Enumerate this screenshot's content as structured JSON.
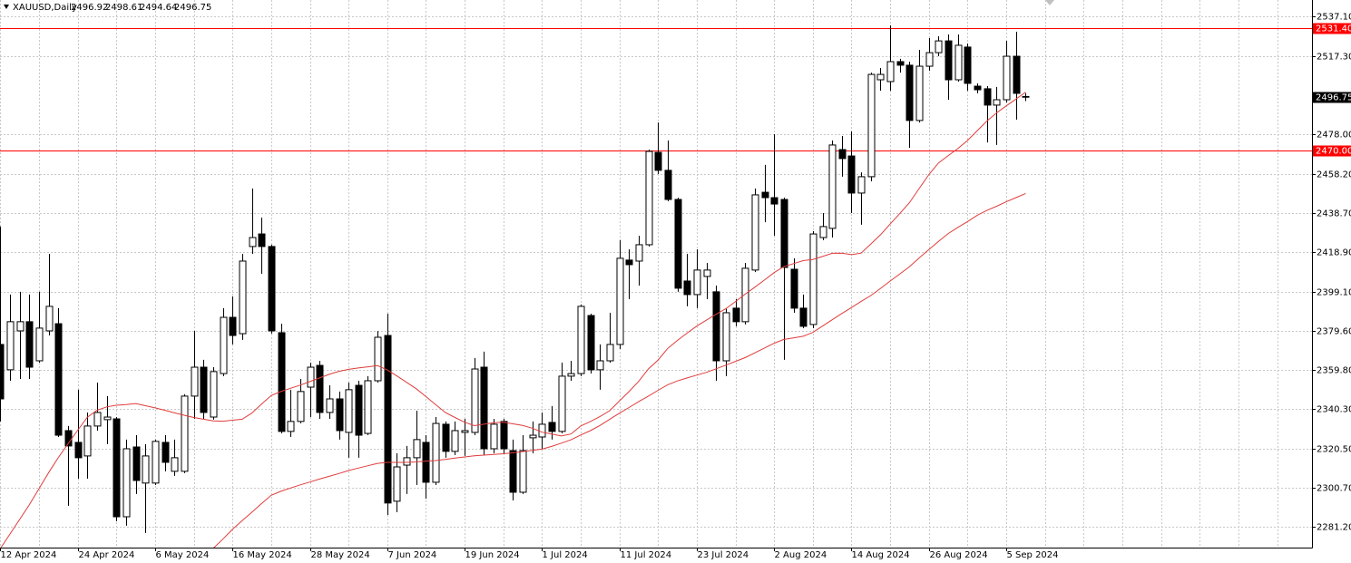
{
  "chart_data": {
    "type": "candlestick",
    "title": "XAUUSD,Daily",
    "categories": [
      "12 Apr 2024",
      null,
      null,
      null,
      null,
      null,
      null,
      null,
      "24 Apr 2024",
      null,
      null,
      null,
      null,
      null,
      null,
      null,
      "6 May 2024",
      null,
      null,
      null,
      null,
      null,
      null,
      null,
      "16 May 2024",
      null,
      null,
      null,
      null,
      null,
      null,
      null,
      "28 May 2024",
      null,
      null,
      null,
      null,
      null,
      null,
      null,
      "7 Jun 2024",
      null,
      null,
      null,
      null,
      null,
      null,
      null,
      "19 Jun 2024",
      null,
      null,
      null,
      null,
      null,
      null,
      null,
      "1 Jul 2024",
      null,
      null,
      null,
      null,
      null,
      null,
      null,
      "11 Jul 2024",
      null,
      null,
      null,
      null,
      null,
      null,
      null,
      "23 Jul 2024",
      null,
      null,
      null,
      null,
      null,
      null,
      null,
      "2 Aug 2024",
      null,
      null,
      null,
      null,
      null,
      null,
      null,
      "14 Aug 2024",
      null,
      null,
      null,
      null,
      null,
      null,
      null,
      "26 Aug 2024",
      null,
      null,
      null,
      null,
      null,
      null,
      null,
      "5 Sep 2024",
      null,
      null
    ],
    "open": [
      2372.6,
      2359.9,
      2379.4,
      2384.0,
      2364.4,
      2379.4,
      2383.0,
      2329.4,
      2323.5,
      2316.7,
      2331.7,
      2334.9,
      2335.3,
      2286.2,
      2321.2,
      2303.1,
      2303.1,
      2323.5,
      2309.0,
      2309.0,
      2346.7,
      2361.2,
      2336.2,
      2358.0,
      2386.2,
      2378.0,
      2421.7,
      2428.0,
      2421.7,
      2378.5,
      2329.0,
      2334.0,
      2351.2,
      2362.1,
      2338.5,
      2345.3,
      2328.5,
      2352.1,
      2328.0,
      2354.4,
      2377.1,
      2294.0,
      2312.1,
      2315.8,
      2323.5,
      2303.5,
      2332.6,
      2319.0,
      2328.5,
      2328.5,
      2361.2,
      2320.3,
      2334.0,
      2319.4,
      2298.5,
      2325.8,
      2326.2,
      2333.5,
      2329.0,
      2356.7,
      2358.0,
      2387.1,
      2359.9,
      2364.4,
      2372.6,
      2414.9,
      2414.4,
      2422.6,
      2468.9,
      2459.9,
      2445.3,
      2404.4,
      2397.6,
      2406.7,
      2399.0,
      2364.4,
      2390.8,
      2384.0,
      2409.9,
      2448.9,
      2446.2,
      2445.3,
      2410.3,
      2390.8,
      2382.6,
      2426.2,
      2430.8,
      2470.3,
      2467.1,
      2448.5,
      2456.7,
      2505.3,
      2504.4,
      2514.4,
      2512.6,
      2484.9,
      2512.1,
      2518.9,
      2524.8,
      2505.3,
      2521.7,
      2502.1,
      2500.8,
      2492.6,
      2495.3,
      2517.1,
      2496.92
    ],
    "high": [
      2431.7,
      2397.6,
      2399.0,
      2397.6,
      2399.0,
      2418.0,
      2390.8,
      2331.7,
      2349.9,
      2338.5,
      2353.5,
      2346.7,
      2336.2,
      2324.9,
      2327.1,
      2322.6,
      2324.9,
      2327.1,
      2324.9,
      2347.6,
      2379.4,
      2364.9,
      2361.2,
      2390.8,
      2396.7,
      2418.0,
      2450.8,
      2436.2,
      2422.6,
      2383.0,
      2349.9,
      2355.3,
      2363.5,
      2364.4,
      2352.1,
      2349.0,
      2353.5,
      2354.4,
      2356.7,
      2379.4,
      2388.0,
      2318.0,
      2321.7,
      2339.4,
      2327.1,
      2336.2,
      2334.0,
      2334.0,
      2335.3,
      2365.8,
      2369.0,
      2335.3,
      2335.3,
      2324.9,
      2327.1,
      2334.0,
      2338.5,
      2341.7,
      2363.5,
      2364.4,
      2392.6,
      2388.0,
      2372.6,
      2388.5,
      2424.9,
      2420.3,
      2427.1,
      2470.3,
      2483.9,
      2474.9,
      2446.2,
      2418.0,
      2420.3,
      2413.5,
      2402.1,
      2390.8,
      2395.3,
      2413.5,
      2450.8,
      2462.6,
      2478.0,
      2446.2,
      2415.8,
      2397.6,
      2429.4,
      2438.5,
      2474.9,
      2477.1,
      2479.4,
      2458.9,
      2508.9,
      2511.2,
      2532.6,
      2515.8,
      2514.4,
      2520.3,
      2526.2,
      2527.1,
      2528.0,
      2528.0,
      2523.5,
      2503.5,
      2502.1,
      2501.7,
      2524.8,
      2529.4,
      2498.61
    ],
    "low": [
      2334.0,
      2354.4,
      2355.3,
      2355.3,
      2363.5,
      2377.1,
      2326.2,
      2291.7,
      2305.3,
      2305.3,
      2329.4,
      2322.6,
      2284.0,
      2281.7,
      2297.6,
      2278.1,
      2302.1,
      2309.0,
      2306.7,
      2308.1,
      2335.3,
      2335.3,
      2334.9,
      2356.7,
      2372.6,
      2374.9,
      2418.0,
      2408.0,
      2378.0,
      2328.0,
      2326.2,
      2333.0,
      2336.2,
      2335.3,
      2335.3,
      2324.9,
      2315.8,
      2315.8,
      2327.1,
      2353.5,
      2287.1,
      2288.5,
      2297.6,
      2302.1,
      2295.3,
      2302.1,
      2315.8,
      2317.1,
      2316.7,
      2327.1,
      2317.1,
      2318.0,
      2318.0,
      2294.4,
      2297.6,
      2318.0,
      2320.3,
      2324.9,
      2328.0,
      2354.4,
      2356.7,
      2358.0,
      2349.9,
      2363.5,
      2370.3,
      2395.3,
      2402.1,
      2421.7,
      2458.0,
      2444.4,
      2399.0,
      2391.7,
      2390.8,
      2395.3,
      2354.4,
      2356.7,
      2381.7,
      2382.6,
      2408.9,
      2433.9,
      2427.1,
      2364.9,
      2388.5,
      2380.8,
      2380.8,
      2424.9,
      2426.2,
      2456.7,
      2438.5,
      2432.6,
      2454.4,
      2499.8,
      2499.8,
      2508.9,
      2471.2,
      2483.9,
      2509.8,
      2517.1,
      2495.3,
      2504.4,
      2499.8,
      2498.5,
      2473.9,
      2472.6,
      2493.9,
      2485.3,
      2494.64
    ],
    "close": [
      2345.3,
      2384.0,
      2384.0,
      2361.2,
      2380.8,
      2391.7,
      2327.1,
      2321.7,
      2315.8,
      2331.7,
      2338.5,
      2336.2,
      2286.2,
      2320.3,
      2304.4,
      2316.7,
      2324.0,
      2313.5,
      2315.8,
      2346.7,
      2361.2,
      2338.5,
      2359.0,
      2386.2,
      2377.1,
      2414.4,
      2426.2,
      2421.7,
      2379.4,
      2329.0,
      2334.0,
      2349.0,
      2361.2,
      2338.5,
      2345.3,
      2329.4,
      2349.9,
      2327.1,
      2354.4,
      2376.2,
      2293.1,
      2311.2,
      2315.8,
      2324.9,
      2303.5,
      2333.0,
      2319.0,
      2329.4,
      2329.4,
      2360.3,
      2320.3,
      2332.6,
      2320.3,
      2298.5,
      2319.4,
      2327.1,
      2332.6,
      2329.0,
      2356.7,
      2358.0,
      2391.7,
      2359.9,
      2364.4,
      2372.6,
      2415.8,
      2412.6,
      2422.6,
      2469.4,
      2459.9,
      2445.3,
      2400.8,
      2397.6,
      2409.9,
      2409.9,
      2364.4,
      2388.5,
      2384.0,
      2410.8,
      2447.6,
      2446.2,
      2443.0,
      2411.2,
      2390.8,
      2381.7,
      2428.0,
      2431.7,
      2472.6,
      2465.8,
      2448.5,
      2456.7,
      2508.0,
      2508.0,
      2514.4,
      2512.6,
      2484.9,
      2512.1,
      2518.9,
      2524.8,
      2505.3,
      2522.6,
      2503.5,
      2500.3,
      2492.6,
      2495.3,
      2517.1,
      2498.5,
      2496.75
    ],
    "up_color": "#ffffff",
    "down_color": "#000000",
    "overlays": [
      {
        "color": "#e03c3c",
        "values": [
          2270.3,
          2277.6,
          2284.9,
          2292.3,
          2300.3,
          2308.4,
          2316.0,
          2322.8,
          2329.6,
          2336.1,
          2339.6,
          2341.3,
          2342.1,
          2342.5,
          2343.0,
          2341.9,
          2340.8,
          2339.6,
          2338.3,
          2337.1,
          2336.0,
          2335.1,
          2334.3,
          2334.1,
          2334.6,
          2335.1,
          2338.2,
          2342.7,
          2347.0,
          2349.0,
          2350.6,
          2352.2,
          2354.0,
          2355.8,
          2357.6,
          2359.1,
          2360.1,
          2360.8,
          2361.4,
          2362.0,
          2359.8,
          2356.8,
          2353.6,
          2350.4,
          2346.5,
          2342.5,
          2338.5,
          2336.0,
          2333.6,
          2331.9,
          2332.6,
          2333.4,
          2333.6,
          2332.8,
          2332.0,
          2330.6,
          2328.6,
          2327.7,
          2326.7,
          2327.7,
          2331.7,
          2334.0,
          2336.5,
          2339.4,
          2344.2,
          2349.0,
          2354.1,
          2360.3,
          2364.8,
          2370.6,
          2374.6,
          2378.3,
          2381.8,
          2384.8,
          2387.7,
          2390.5,
          2394.1,
          2397.8,
          2401.3,
          2404.9,
          2408.6,
          2411.6,
          2413.1,
          2414.6,
          2415.2,
          2416.7,
          2418.3,
          2418.4,
          2417.6,
          2418.4,
          2423.0,
          2427.6,
          2433.0,
          2438.3,
          2443.7,
          2450.8,
          2457.8,
          2463.6,
          2467.3,
          2470.8,
          2474.9,
          2479.8,
          2484.6,
          2488.7,
          2492.2,
          2495.6,
          2499.1
        ]
      },
      {
        "color": "#e03c3c",
        "values": [
          null,
          null,
          null,
          null,
          null,
          null,
          null,
          null,
          null,
          null,
          null,
          null,
          null,
          null,
          null,
          null,
          null,
          null,
          null,
          null,
          null,
          null,
          2270.3,
          2275.0,
          2279.9,
          2284.3,
          2288.5,
          2292.8,
          2297.0,
          2299.0,
          2300.6,
          2302.2,
          2303.6,
          2305.1,
          2306.5,
          2307.9,
          2309.4,
          2310.6,
          2311.8,
          2313.0,
          2313.5,
          2313.5,
          2313.5,
          2313.7,
          2314.1,
          2314.4,
          2315.0,
          2315.6,
          2316.2,
          2316.8,
          2317.1,
          2317.5,
          2317.8,
          2318.3,
          2318.9,
          2319.5,
          2320.1,
          2321.5,
          2323.1,
          2324.8,
          2327.2,
          2329.4,
          2332.0,
          2335.1,
          2338.1,
          2341.0,
          2344.0,
          2346.7,
          2349.6,
          2352.4,
          2354.3,
          2355.8,
          2357.2,
          2358.6,
          2360.4,
          2362.2,
          2364.1,
          2366.0,
          2368.4,
          2370.8,
          2373.2,
          2375.1,
          2375.9,
          2376.7,
          2378.6,
          2381.8,
          2385.0,
          2388.1,
          2391.1,
          2394.2,
          2397.1,
          2400.7,
          2404.4,
          2408.0,
          2411.6,
          2416.0,
          2420.2,
          2424.3,
          2428.2,
          2431.3,
          2434.2,
          2437.4,
          2439.8,
          2441.9,
          2444.1,
          2446.2,
          2448.3
        ]
      }
    ],
    "hlines": [
      {
        "value": 2531.4,
        "label": "2531.40",
        "color": "#ff0000"
      },
      {
        "value": 2470.0,
        "label": "2470.00",
        "color": "#ff0000"
      }
    ],
    "ylim": [
      2270.75,
      2545.3
    ],
    "yticks": [
      {
        "value": 2537.1,
        "label": "2537.10"
      },
      {
        "value": 2517.3,
        "label": "2517.30"
      },
      {
        "value": 2478.0,
        "label": "2478.00"
      },
      {
        "value": 2458.2,
        "label": "2458.20"
      },
      {
        "value": 2438.7,
        "label": "2438.70"
      },
      {
        "value": 2418.9,
        "label": "2418.90"
      },
      {
        "value": 2399.1,
        "label": "2399.10"
      },
      {
        "value": 2379.6,
        "label": "2379.60"
      },
      {
        "value": 2359.8,
        "label": "2359.80"
      },
      {
        "value": 2340.3,
        "label": "2340.30"
      },
      {
        "value": 2320.5,
        "label": "2320.50"
      },
      {
        "value": 2300.7,
        "label": "2300.70"
      },
      {
        "value": 2281.2,
        "label": "2281.20"
      }
    ],
    "grid": true
  }
}
